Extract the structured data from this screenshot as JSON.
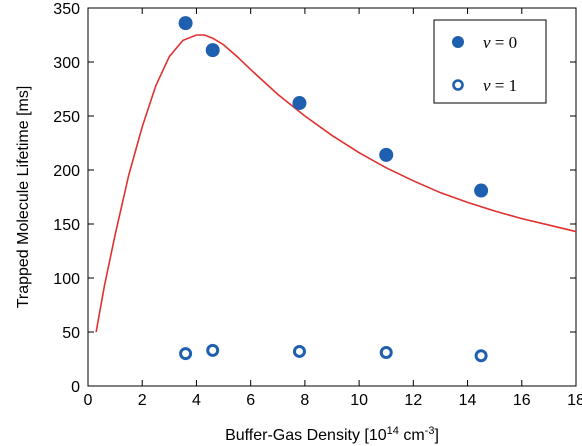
{
  "chart_data": {
    "type": "scatter",
    "xlabel": "Buffer-Gas Density [10",
    "xlabel_exponent": "14",
    "xlabel_unit": " cm",
    "xlabel_unit_exponent": "-3",
    "xlabel_close": "]",
    "ylabel": "Trapped Molecule Lifetime [ms]",
    "xlim": [
      0,
      18
    ],
    "ylim": [
      0,
      350
    ],
    "xticks": [
      0,
      2,
      4,
      6,
      8,
      10,
      12,
      14,
      16,
      18
    ],
    "yticks": [
      0,
      50,
      100,
      150,
      200,
      250,
      300,
      350
    ],
    "grid": false,
    "legend_position": "top-right",
    "colors": {
      "marker": "#1f5fb0",
      "fit": "#e03030",
      "axes": "#000000"
    },
    "series": [
      {
        "name_var": "v",
        "name_rest": " = 0",
        "marker": "filled-circle",
        "x": [
          3.6,
          4.6,
          7.8,
          11.0,
          14.5
        ],
        "y": [
          336,
          311,
          262,
          214,
          181
        ]
      },
      {
        "name_var": "v",
        "name_rest": " = 1",
        "marker": "open-circle",
        "x": [
          3.6,
          4.6,
          7.8,
          11.0,
          14.5
        ],
        "y": [
          30,
          33,
          32,
          31,
          28
        ]
      }
    ],
    "fit_curve": {
      "type": "line",
      "x": [
        0.3,
        0.6,
        1.0,
        1.5,
        2.0,
        2.5,
        3.0,
        3.5,
        4.0,
        4.3,
        4.6,
        5.0,
        5.5,
        6.0,
        7.0,
        8.0,
        9.0,
        10.0,
        11.0,
        12.0,
        13.0,
        14.0,
        15.0,
        16.0,
        17.0,
        18.0
      ],
      "y": [
        50,
        92,
        140,
        195,
        240,
        278,
        305,
        320,
        325,
        325,
        322,
        316,
        305,
        293,
        270,
        250,
        232,
        216,
        202,
        190,
        179,
        170,
        162,
        155,
        149,
        143
      ]
    }
  }
}
